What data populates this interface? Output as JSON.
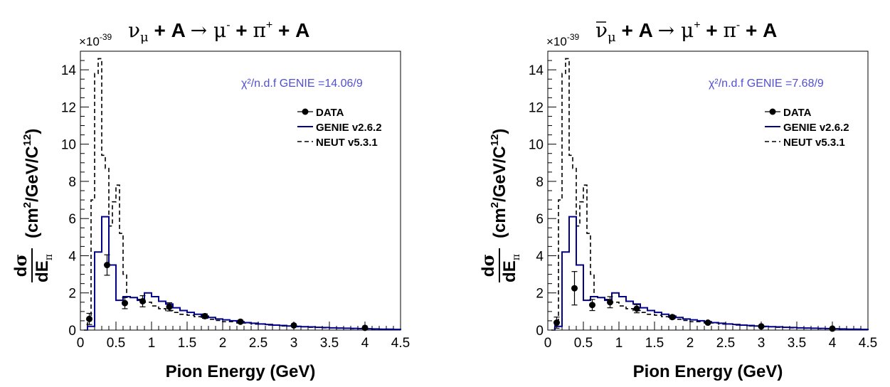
{
  "chart_data": [
    {
      "type": "histogram",
      "title": "ν_μ + A → μ⁻ + π⁺ + A",
      "title_parts": {
        "nu": "ν",
        "nu_bar": false,
        "sub": "μ",
        "rest1": " + A ",
        "arrow": "→",
        "mu": " μ",
        "mu_charge": "-",
        "plus2": " + ",
        "pi": "π",
        "pi_charge": "+",
        "end": " + A"
      },
      "xlabel": "Pion Energy (GeV)",
      "ylabel": "dσ/dE_π (cm²/GeV/C¹²)",
      "y_multiplier": "×10",
      "y_multiplier_exp": "-39",
      "xlim": [
        0,
        4.5
      ],
      "ylim": [
        0,
        15
      ],
      "x_ticks": [
        "0",
        "0.5",
        "1",
        "1.5",
        "2",
        "2.5",
        "3",
        "3.5",
        "4",
        "4.5"
      ],
      "y_ticks": [
        "0",
        "2",
        "4",
        "6",
        "8",
        "10",
        "12",
        "14"
      ],
      "x_tick_values": [
        0,
        0.5,
        1,
        1.5,
        2,
        2.5,
        3,
        3.5,
        4,
        4.5
      ],
      "y_tick_values": [
        0,
        2,
        4,
        6,
        8,
        10,
        12,
        14
      ],
      "chi2_label": "χ²/n.d.f GENIE =14.06/9",
      "chi2_color": "#5050d0",
      "legend": [
        {
          "name": "DATA",
          "style": "marker"
        },
        {
          "name": "GENIE v2.6.2",
          "style": "solid",
          "color": "#00008b"
        },
        {
          "name": "NEUT v5.3.1",
          "style": "dashed",
          "color": "#000000"
        }
      ],
      "series": [
        {
          "name": "DATA",
          "x": [
            0.125,
            0.375,
            0.625,
            0.875,
            1.25,
            1.75,
            2.25,
            3.0,
            4.0
          ],
          "y": [
            0.6,
            3.5,
            1.45,
            1.55,
            1.25,
            0.75,
            0.45,
            0.25,
            0.12
          ],
          "yerr": [
            0.3,
            0.55,
            0.3,
            0.3,
            0.22,
            0.12,
            0.08,
            0.05,
            0.03
          ]
        },
        {
          "name": "GENIE v2.6.2",
          "edges": [
            0.1,
            0.2,
            0.3,
            0.4,
            0.5,
            0.6,
            0.7,
            0.8,
            0.9,
            1.0,
            1.1,
            1.2,
            1.3,
            1.4,
            1.5,
            1.6,
            1.7,
            1.8,
            1.9,
            2.0,
            2.1,
            2.2,
            2.3,
            2.4,
            2.5,
            2.6,
            2.7,
            2.8,
            2.9,
            3.0,
            3.1,
            3.2,
            3.3,
            3.4,
            3.5,
            3.6,
            3.7,
            3.8,
            3.9,
            4.0,
            4.1,
            4.2,
            4.3,
            4.4,
            4.5
          ],
          "values": [
            0.2,
            4.2,
            6.1,
            3.5,
            1.6,
            1.8,
            1.75,
            1.6,
            2.0,
            1.8,
            1.55,
            1.4,
            1.2,
            1.05,
            0.95,
            0.85,
            0.75,
            0.68,
            0.6,
            0.55,
            0.5,
            0.45,
            0.4,
            0.37,
            0.33,
            0.3,
            0.27,
            0.25,
            0.22,
            0.2,
            0.18,
            0.17,
            0.15,
            0.14,
            0.12,
            0.11,
            0.1,
            0.09,
            0.08,
            0.07,
            0.06,
            0.05,
            0.05,
            0.04
          ]
        },
        {
          "name": "NEUT v5.3.1",
          "edges": [
            0.05,
            0.1,
            0.15,
            0.2,
            0.25,
            0.3,
            0.35,
            0.4,
            0.45,
            0.5,
            0.55,
            0.6,
            0.65,
            0.7,
            0.8,
            0.9,
            1.0,
            1.1,
            1.2,
            1.3,
            1.4,
            1.5,
            1.6,
            1.7,
            1.8,
            1.9,
            2.0,
            2.2,
            2.4,
            2.6,
            2.8,
            3.0,
            3.2,
            3.4,
            3.6,
            3.8,
            4.0,
            4.2,
            4.4,
            4.5
          ],
          "values": [
            0.0,
            0.5,
            7.0,
            13.8,
            14.6,
            9.4,
            8.7,
            5.6,
            6.9,
            7.8,
            5.2,
            3.0,
            1.8,
            1.75,
            1.65,
            1.5,
            1.3,
            1.15,
            1.05,
            0.95,
            0.85,
            0.8,
            0.72,
            0.65,
            0.58,
            0.52,
            0.45,
            0.38,
            0.32,
            0.27,
            0.22,
            0.18,
            0.15,
            0.12,
            0.1,
            0.08,
            0.06,
            0.05,
            0.04
          ]
        }
      ]
    },
    {
      "type": "histogram",
      "title": "ν̄_μ + A → μ⁺ + π⁻ + A",
      "title_parts": {
        "nu": "ν",
        "nu_bar": true,
        "sub": "μ",
        "rest1": " + A ",
        "arrow": "→",
        "mu": " μ",
        "mu_charge": "+",
        "plus2": " + ",
        "pi": "π",
        "pi_charge": "-",
        "end": " + A"
      },
      "xlabel": "Pion Energy (GeV)",
      "ylabel": "dσ/dE_π (cm²/GeV/C¹²)",
      "y_multiplier": "×10",
      "y_multiplier_exp": "-39",
      "xlim": [
        0,
        4.5
      ],
      "ylim": [
        0,
        15
      ],
      "x_ticks": [
        "0",
        "0.5",
        "1",
        "1.5",
        "2",
        "2.5",
        "3",
        "3.5",
        "4",
        "4.5"
      ],
      "y_ticks": [
        "0",
        "2",
        "4",
        "6",
        "8",
        "10",
        "12",
        "14"
      ],
      "x_tick_values": [
        0,
        0.5,
        1,
        1.5,
        2,
        2.5,
        3,
        3.5,
        4,
        4.5
      ],
      "y_tick_values": [
        0,
        2,
        4,
        6,
        8,
        10,
        12,
        14
      ],
      "chi2_label": "χ²/n.d.f GENIE =7.68/9",
      "chi2_color": "#5050d0",
      "legend": [
        {
          "name": "DATA",
          "style": "marker"
        },
        {
          "name": "GENIE v2.6.2",
          "style": "solid",
          "color": "#00008b"
        },
        {
          "name": "NEUT v5.3.1",
          "style": "dashed",
          "color": "#000000"
        }
      ],
      "series": [
        {
          "name": "DATA",
          "x": [
            0.125,
            0.375,
            0.625,
            0.875,
            1.25,
            1.75,
            2.25,
            3.0,
            4.0
          ],
          "y": [
            0.4,
            2.25,
            1.35,
            1.5,
            1.15,
            0.7,
            0.4,
            0.2,
            0.08
          ],
          "yerr": [
            0.3,
            0.9,
            0.3,
            0.3,
            0.22,
            0.1,
            0.07,
            0.04,
            0.03
          ]
        },
        {
          "name": "GENIE v2.6.2",
          "edges": [
            0.1,
            0.2,
            0.3,
            0.4,
            0.5,
            0.6,
            0.7,
            0.8,
            0.9,
            1.0,
            1.1,
            1.2,
            1.3,
            1.4,
            1.5,
            1.6,
            1.7,
            1.8,
            1.9,
            2.0,
            2.1,
            2.2,
            2.3,
            2.4,
            2.5,
            2.6,
            2.7,
            2.8,
            2.9,
            3.0,
            3.1,
            3.2,
            3.3,
            3.4,
            3.5,
            3.6,
            3.7,
            3.8,
            3.9,
            4.0,
            4.1,
            4.2,
            4.3,
            4.4,
            4.5
          ],
          "values": [
            0.2,
            4.2,
            6.1,
            3.5,
            1.6,
            1.8,
            1.75,
            1.6,
            2.0,
            1.8,
            1.55,
            1.4,
            1.2,
            1.05,
            0.95,
            0.85,
            0.75,
            0.68,
            0.6,
            0.55,
            0.5,
            0.45,
            0.4,
            0.37,
            0.33,
            0.3,
            0.27,
            0.25,
            0.22,
            0.2,
            0.18,
            0.17,
            0.15,
            0.14,
            0.12,
            0.11,
            0.1,
            0.09,
            0.08,
            0.07,
            0.06,
            0.05,
            0.05,
            0.04
          ]
        },
        {
          "name": "NEUT v5.3.1",
          "edges": [
            0.05,
            0.1,
            0.15,
            0.2,
            0.25,
            0.3,
            0.35,
            0.4,
            0.45,
            0.5,
            0.55,
            0.6,
            0.65,
            0.7,
            0.8,
            0.9,
            1.0,
            1.1,
            1.2,
            1.3,
            1.4,
            1.5,
            1.6,
            1.7,
            1.8,
            1.9,
            2.0,
            2.2,
            2.4,
            2.6,
            2.8,
            3.0,
            3.2,
            3.4,
            3.6,
            3.8,
            4.0,
            4.2,
            4.4,
            4.5
          ],
          "values": [
            0.0,
            0.5,
            7.0,
            13.8,
            14.6,
            9.4,
            8.7,
            5.6,
            6.9,
            7.8,
            5.2,
            3.0,
            1.8,
            1.75,
            1.65,
            1.5,
            1.3,
            1.15,
            1.05,
            0.95,
            0.85,
            0.8,
            0.72,
            0.65,
            0.58,
            0.52,
            0.45,
            0.38,
            0.32,
            0.27,
            0.22,
            0.18,
            0.15,
            0.12,
            0.1,
            0.08,
            0.06,
            0.05,
            0.04
          ]
        }
      ]
    }
  ]
}
